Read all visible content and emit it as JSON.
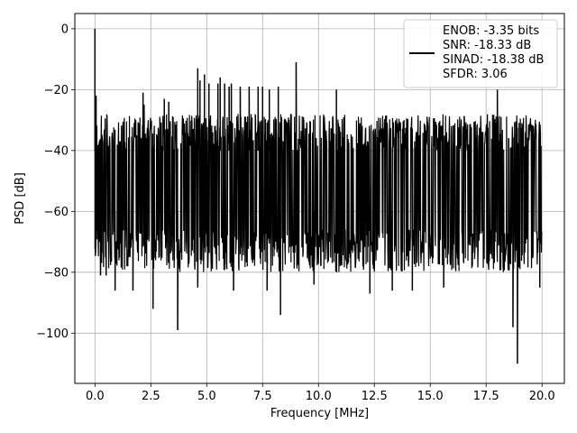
{
  "chart_data": {
    "type": "line",
    "title": "",
    "xlabel": "Frequency [MHz]",
    "ylabel": "PSD [dB]",
    "xlim": [
      -0.9,
      21.0
    ],
    "ylim": [
      -116.5,
      5.0
    ],
    "grid": true,
    "x_ticks": [
      0.0,
      2.5,
      5.0,
      7.5,
      10.0,
      12.5,
      15.0,
      17.5,
      20.0
    ],
    "x_tick_labels": [
      "0.0",
      "2.5",
      "5.0",
      "7.5",
      "10.0",
      "12.5",
      "15.0",
      "17.5",
      "20.0"
    ],
    "y_ticks": [
      0,
      -20,
      -40,
      -60,
      -80,
      -100
    ],
    "y_tick_labels": [
      "0",
      "−20",
      "−40",
      "−60",
      "−80",
      "−100"
    ],
    "legend_position": "top-right",
    "series": [
      {
        "name": "ENOB: -3.35 bits\nSNR: -18.33 dB\nSINAD: -18.38 dB\nSFDR: 3.06",
        "color": "#000000",
        "legend_lines": [
          "ENOB: -3.35 bits",
          "SNR: -18.33 dB",
          "SINAD: -18.38 dB",
          "SFDR: 3.06"
        ],
        "x_range": [
          0.0,
          20.0
        ],
        "noise_floor_range": [
          -80,
          -28
        ],
        "peaks": [
          {
            "x": 0.0,
            "y": 0
          },
          {
            "x": 0.05,
            "y": -22
          },
          {
            "x": 2.2,
            "y": -25
          },
          {
            "x": 2.15,
            "y": -21
          },
          {
            "x": 3.1,
            "y": -23
          },
          {
            "x": 3.3,
            "y": -24
          },
          {
            "x": 4.6,
            "y": -13
          },
          {
            "x": 4.7,
            "y": -17
          },
          {
            "x": 4.9,
            "y": -15
          },
          {
            "x": 5.1,
            "y": -18
          },
          {
            "x": 5.5,
            "y": -18
          },
          {
            "x": 5.6,
            "y": -16
          },
          {
            "x": 5.8,
            "y": -18
          },
          {
            "x": 6.0,
            "y": -19
          },
          {
            "x": 6.1,
            "y": -18
          },
          {
            "x": 6.5,
            "y": -19
          },
          {
            "x": 6.9,
            "y": -19
          },
          {
            "x": 7.3,
            "y": -19
          },
          {
            "x": 7.5,
            "y": -19
          },
          {
            "x": 7.8,
            "y": -20
          },
          {
            "x": 8.2,
            "y": -19
          },
          {
            "x": 9.0,
            "y": -11
          },
          {
            "x": 10.8,
            "y": -20
          },
          {
            "x": 18.0,
            "y": -20
          }
        ],
        "dips": [
          {
            "x": 0.05,
            "y": -60
          },
          {
            "x": 0.2,
            "y": -70
          },
          {
            "x": 0.25,
            "y": -81
          },
          {
            "x": 0.5,
            "y": -81
          },
          {
            "x": 0.9,
            "y": -86
          },
          {
            "x": 1.7,
            "y": -86
          },
          {
            "x": 2.6,
            "y": -92
          },
          {
            "x": 3.7,
            "y": -99
          },
          {
            "x": 4.6,
            "y": -85
          },
          {
            "x": 6.2,
            "y": -86
          },
          {
            "x": 7.7,
            "y": -86
          },
          {
            "x": 8.3,
            "y": -94
          },
          {
            "x": 9.8,
            "y": -84
          },
          {
            "x": 12.3,
            "y": -87
          },
          {
            "x": 13.3,
            "y": -86
          },
          {
            "x": 14.2,
            "y": -86
          },
          {
            "x": 15.6,
            "y": -85
          },
          {
            "x": 18.7,
            "y": -98
          },
          {
            "x": 18.9,
            "y": -110
          },
          {
            "x": 19.9,
            "y": -85
          }
        ]
      }
    ]
  }
}
